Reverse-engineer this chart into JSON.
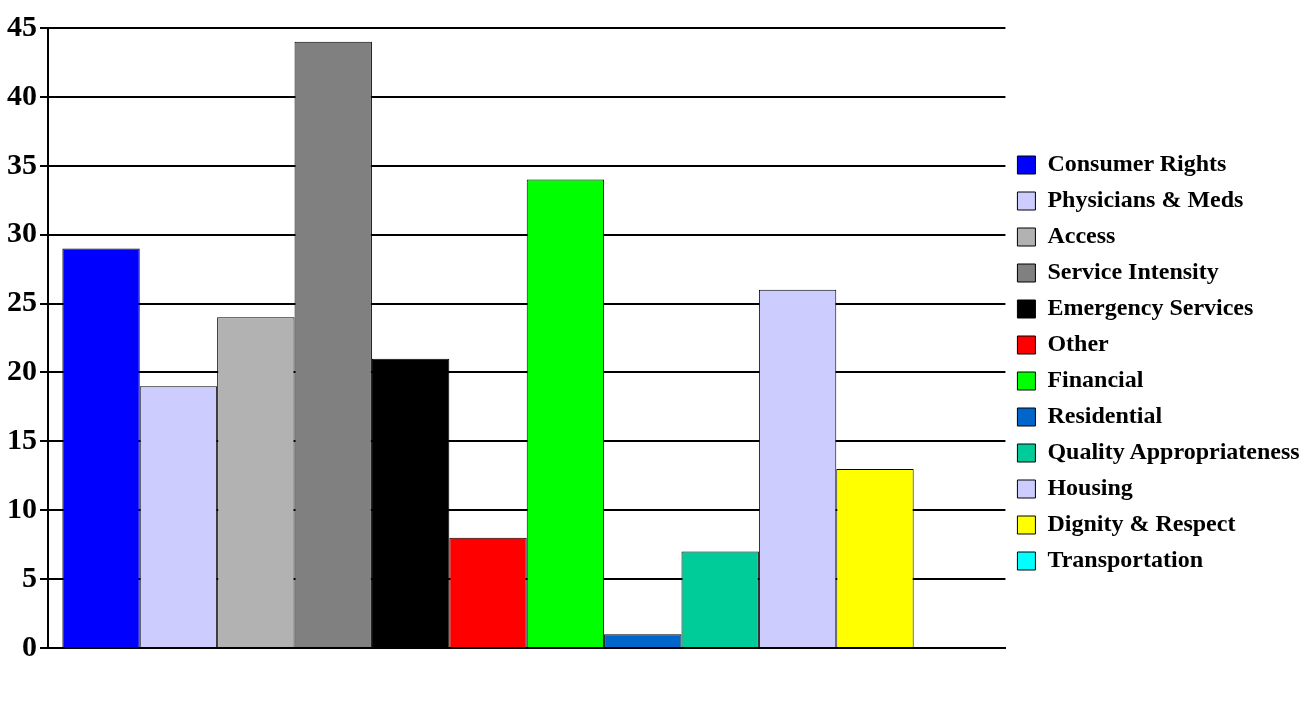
{
  "chart_data": {
    "type": "bar",
    "categories": [
      null
    ],
    "series": [
      {
        "name": "Consumer Rights",
        "color": "#0000ff",
        "values": [
          29
        ]
      },
      {
        "name": "Physicians & Meds",
        "color": "#ccccff",
        "values": [
          19
        ]
      },
      {
        "name": "Access",
        "color": "#b2b2b2",
        "values": [
          24
        ]
      },
      {
        "name": "Service Intensity",
        "color": "#808080",
        "values": [
          44
        ]
      },
      {
        "name": "Emergency Services",
        "color": "#000000",
        "values": [
          21
        ]
      },
      {
        "name": "Other",
        "color": "#ff0000",
        "values": [
          8
        ]
      },
      {
        "name": "Financial",
        "color": "#00ff00",
        "values": [
          34
        ]
      },
      {
        "name": "Residential",
        "color": "#0066cc",
        "values": [
          1
        ]
      },
      {
        "name": "Quality Appropriateness",
        "color": "#00cc99",
        "values": [
          7
        ]
      },
      {
        "name": "Housing",
        "color": "#ccccff",
        "values": [
          26
        ]
      },
      {
        "name": "Dignity & Respect",
        "color": "#ffff00",
        "values": [
          13
        ]
      },
      {
        "name": "Transportation",
        "color": "#00ffff",
        "values": [
          0
        ]
      }
    ],
    "ylim": [
      0,
      45
    ],
    "yticks": [
      0,
      5,
      10,
      15,
      20,
      25,
      30,
      35,
      40,
      45
    ],
    "grid": "y",
    "legend": "right"
  }
}
